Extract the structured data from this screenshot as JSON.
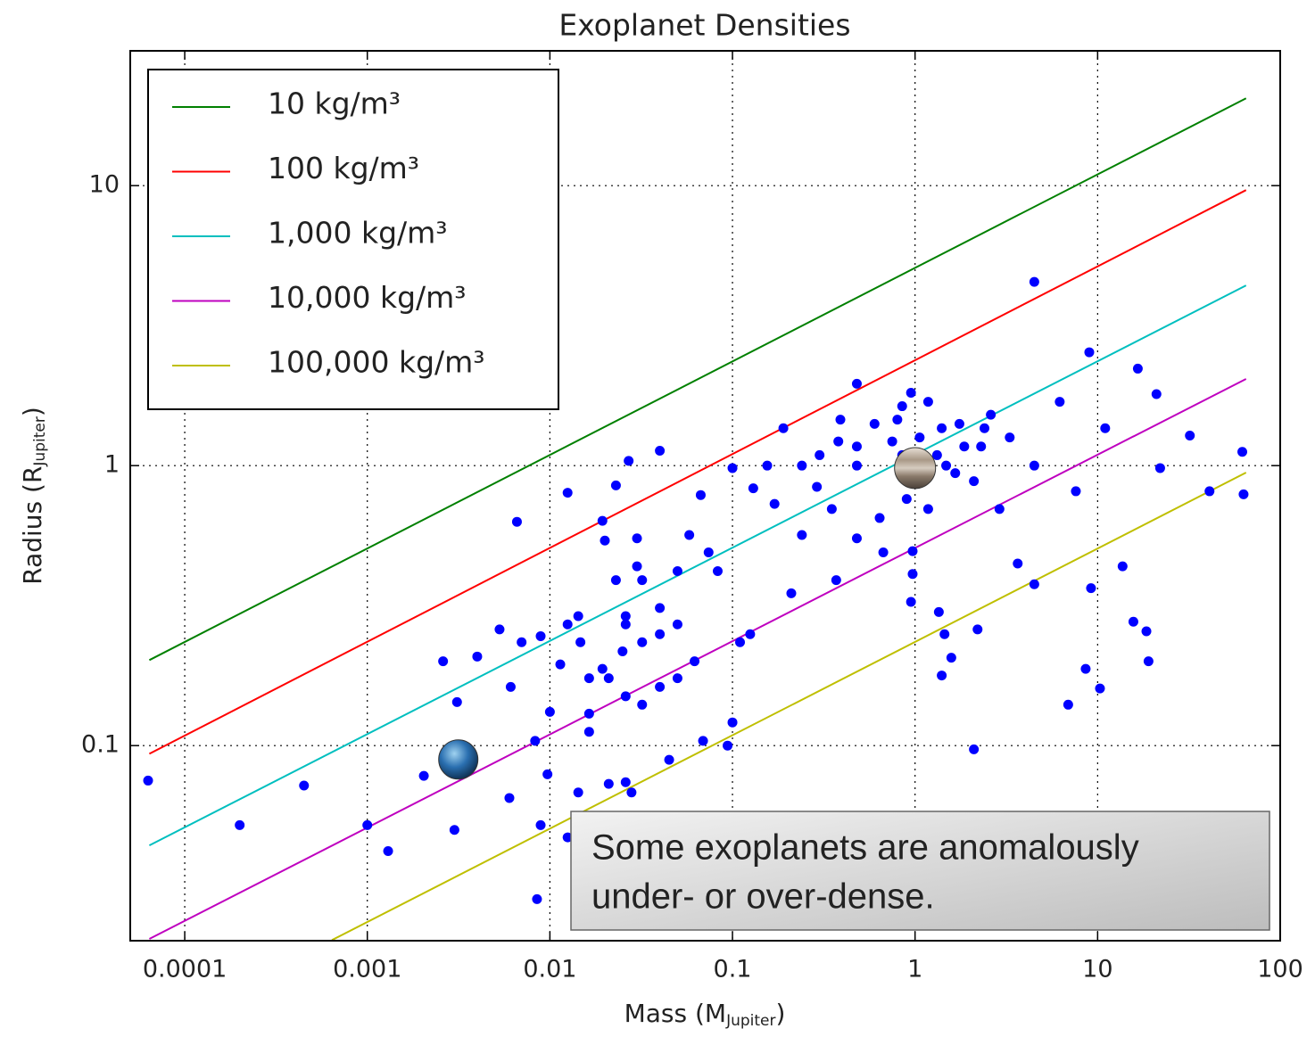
{
  "chart_data": {
    "type": "scatter",
    "title": "Exoplanet Densities",
    "xlabel": [
      "Mass (M",
      "Jupiter",
      ")"
    ],
    "ylabel": [
      "Radius (R",
      "Jupiter",
      ")"
    ],
    "xscale": "log",
    "yscale": "log",
    "grid": true,
    "legend": "upper left",
    "xlim": [
      5.03e-05,
      100
    ],
    "ylim": [
      0.0201,
      30.3
    ],
    "xticks": [
      0.0001,
      0.001,
      0.01,
      0.1,
      1,
      10,
      100
    ],
    "yticks": [
      0.1,
      1,
      10
    ],
    "series": [
      {
        "name": "10 kg/m³",
        "color": "#008000",
        "x": [
          6.4e-05,
          65
        ],
        "values": [
          0.202,
          20.5
        ]
      },
      {
        "name": "100 kg/m³",
        "color": "#ff0000",
        "x": [
          6.4e-05,
          65
        ],
        "values": [
          0.0935,
          9.64
        ]
      },
      {
        "name": "1,000 kg/m³",
        "color": "#00bfbf",
        "x": [
          6.4e-05,
          65
        ],
        "values": [
          0.044,
          4.4
        ]
      },
      {
        "name": "10,000 kg/m³",
        "color": "#bf00bf",
        "x": [
          6.4e-05,
          65
        ],
        "values": [
          0.0204,
          2.04
        ]
      },
      {
        "name": "100,000 kg/m³",
        "color": "#bfbf00",
        "x": [
          0.00064,
          65
        ],
        "values": [
          0.0202,
          0.944
        ]
      }
    ],
    "points": {
      "color": "#0000ff",
      "x": [
        6.3e-05,
        0.0002,
        0.00045,
        0.001,
        0.0013,
        0.0026,
        0.0031,
        0.003,
        0.00204,
        0.004,
        0.0053,
        0.0066,
        0.0061,
        0.007,
        0.006,
        0.0083,
        0.0089,
        0.0089,
        0.0085,
        0.0097,
        0.0125,
        0.0125,
        0.0125,
        0.01,
        0.0114,
        0.0143,
        0.0143,
        0.0164,
        0.0194,
        0.0194,
        0.02,
        0.023,
        0.027,
        0.04,
        0.03,
        0.03,
        0.026,
        0.023,
        0.025,
        0.032,
        0.04,
        0.05,
        0.058,
        0.067,
        0.074,
        0.083,
        0.1,
        0.1,
        0.11,
        0.125,
        0.13,
        0.155,
        0.17,
        0.19,
        0.21,
        0.24,
        0.3,
        0.35,
        0.37,
        0.39,
        0.48,
        0.48,
        0.48,
        0.64,
        0.67,
        0.8,
        0.85,
        0.95,
        0.95,
        1.06,
        1.18,
        1.4,
        1.48,
        1.86,
        2.1,
        2.2,
        2.1,
        2.4,
        2.9,
        3.3,
        3.65,
        4.5,
        4.5,
        4.5,
        6.2,
        6.9,
        7.6,
        9.0,
        8.6,
        10.3,
        9.2,
        11,
        13.7,
        16.6,
        15.7,
        18.5,
        19,
        21,
        22,
        32,
        41,
        62,
        63,
        0.021,
        0.026,
        0.028,
        0.045,
        0.069,
        0.094,
        1.58,
        1.35,
        1.45,
        1.4,
        0.97,
        0.97,
        0.9,
        0.38,
        0.6,
        0.75,
        1.32,
        1.75,
        1.66,
        2.3,
        0.48,
        0.85,
        1.18,
        0.24,
        0.29,
        2.6,
        0.0147,
        0.021,
        0.026,
        0.032,
        0.04,
        0.05,
        0.05,
        0.04,
        0.032,
        0.026,
        0.0164,
        0.062,
        0.0164
      ],
      "values": [
        0.075,
        0.052,
        0.072,
        0.052,
        0.042,
        0.2,
        0.143,
        0.05,
        0.078,
        0.208,
        0.26,
        0.63,
        0.162,
        0.234,
        0.065,
        0.104,
        0.246,
        0.052,
        0.0283,
        0.079,
        0.8,
        0.047,
        0.271,
        0.132,
        0.195,
        0.29,
        0.068,
        0.112,
        0.188,
        0.635,
        0.54,
        0.85,
        1.04,
        1.13,
        0.55,
        0.437,
        0.271,
        0.39,
        0.217,
        0.234,
        0.25,
        0.42,
        0.565,
        0.785,
        0.49,
        0.42,
        0.98,
        0.121,
        0.234,
        0.25,
        0.83,
        1.0,
        0.73,
        1.36,
        0.35,
        0.565,
        1.09,
        0.7,
        0.39,
        1.46,
        1.96,
        1.0,
        0.55,
        0.65,
        0.49,
        1.46,
        1.09,
        1.82,
        0.326,
        1.26,
        0.7,
        1.36,
        1.0,
        1.17,
        0.88,
        0.26,
        0.097,
        1.36,
        0.7,
        1.26,
        0.447,
        4.53,
        0.377,
        1.0,
        1.69,
        0.14,
        0.81,
        2.54,
        0.188,
        0.16,
        0.365,
        1.36,
        0.437,
        2.22,
        0.277,
        0.256,
        0.2,
        1.8,
        0.98,
        1.28,
        0.81,
        1.12,
        0.79,
        0.073,
        0.074,
        0.068,
        0.089,
        0.104,
        0.1,
        0.206,
        0.3,
        0.25,
        0.178,
        0.41,
        0.495,
        0.76,
        1.22,
        1.41,
        1.22,
        1.09,
        1.41,
        0.94,
        1.17,
        1.17,
        1.63,
        1.69,
        1.0,
        0.84,
        1.52,
        0.234,
        0.174,
        0.15,
        0.14,
        0.162,
        0.174,
        0.271,
        0.31,
        0.39,
        0.29,
        0.174,
        0.2,
        0.13
      ]
    },
    "highlights": [
      {
        "x": 0.00315,
        "y": 0.0892
      },
      {
        "x": 1,
        "y": 0.98
      }
    ],
    "annotation": [
      "Some exoplanets are anomalously",
      "under- or over-dense."
    ]
  }
}
